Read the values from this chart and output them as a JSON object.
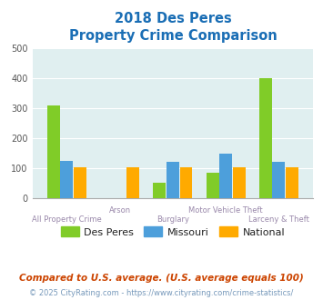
{
  "title_line1": "2018 Des Peres",
  "title_line2": "Property Crime Comparison",
  "categories": [
    "All Property Crime",
    "Arson",
    "Burglary",
    "Motor Vehicle Theft",
    "Larceny & Theft"
  ],
  "des_peres": [
    310,
    0,
    52,
    85,
    400
  ],
  "missouri": [
    125,
    0,
    120,
    147,
    120
  ],
  "national": [
    103,
    103,
    103,
    103,
    103
  ],
  "des_peres_color": "#80cc28",
  "missouri_color": "#4d9fdb",
  "national_color": "#ffaa00",
  "title_color": "#1a6eb5",
  "xlabel_color_even": "#aa8888",
  "xlabel_color_odd": "#888888",
  "background_plot": "#e0eff0",
  "ylim": [
    0,
    500
  ],
  "yticks": [
    0,
    100,
    200,
    300,
    400,
    500
  ],
  "legend_labels": [
    "Des Peres",
    "Missouri",
    "National"
  ],
  "footnote1": "Compared to U.S. average. (U.S. average equals 100)",
  "footnote2": "© 2025 CityRating.com - https://www.cityrating.com/crime-statistics/",
  "footnote1_color": "#cc4400",
  "footnote2_color": "#7799bb"
}
